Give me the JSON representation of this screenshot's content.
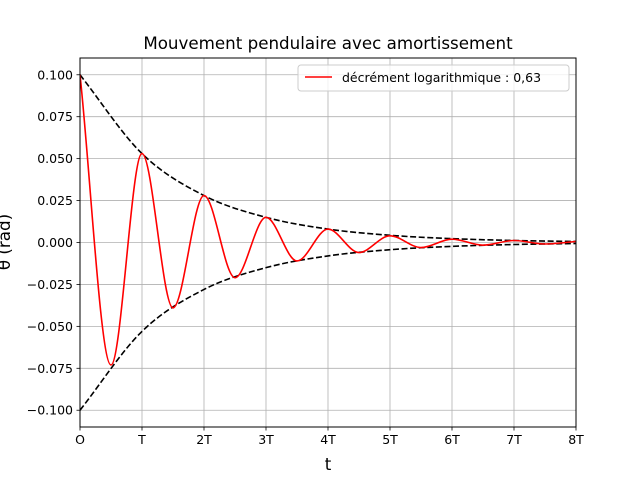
{
  "chart_data": {
    "type": "line",
    "title": "Mouvement pendulaire avec amortissement",
    "xlabel": "t",
    "ylabel": "θ (rad)",
    "xlim": [
      0,
      8
    ],
    "ylim": [
      -0.11,
      0.11
    ],
    "x_ticks": [
      {
        "value": 0,
        "label": "O"
      },
      {
        "value": 1,
        "label": "T"
      },
      {
        "value": 2,
        "label": "2T"
      },
      {
        "value": 3,
        "label": "3T"
      },
      {
        "value": 4,
        "label": "4T"
      },
      {
        "value": 5,
        "label": "5T"
      },
      {
        "value": 6,
        "label": "6T"
      },
      {
        "value": 7,
        "label": "7T"
      },
      {
        "value": 8,
        "label": "8T"
      }
    ],
    "y_ticks": [
      {
        "value": 0.1,
        "label": "0.100"
      },
      {
        "value": 0.075,
        "label": "0.075"
      },
      {
        "value": 0.05,
        "label": "0.050"
      },
      {
        "value": 0.025,
        "label": "0.025"
      },
      {
        "value": 0.0,
        "label": "0.000"
      },
      {
        "value": -0.025,
        "label": "−0.025"
      },
      {
        "value": -0.05,
        "label": "−0.050"
      },
      {
        "value": -0.075,
        "label": "−0.075"
      },
      {
        "value": -0.1,
        "label": "−0.100"
      }
    ],
    "grid": true,
    "legend_position": "top-right",
    "series": [
      {
        "name": "décrément logarithmique : 0,63",
        "color": "#ff0000",
        "style": "solid",
        "x": [
          0,
          0.5,
          1,
          1.5,
          2,
          2.5,
          3,
          3.5,
          4,
          4.5,
          5,
          5.5,
          6,
          6.5,
          7,
          7.5,
          8
        ],
        "y": [
          0.1,
          -0.073,
          0.053,
          -0.039,
          0.028,
          -0.021,
          0.015,
          -0.011,
          0.008,
          -0.006,
          0.004,
          -0.003,
          0.002,
          -0.0016,
          0.0012,
          -0.0009,
          0.0006
        ]
      },
      {
        "color": "#000000",
        "style": "dashed",
        "x": [
          0,
          1,
          2,
          3,
          4,
          5,
          6,
          7,
          8
        ],
        "y": [
          0.1,
          0.053,
          0.028,
          0.015,
          0.008,
          0.0043,
          0.0023,
          0.0012,
          0.0006
        ]
      },
      {
        "color": "#000000",
        "style": "dashed",
        "x": [
          0,
          1,
          2,
          3,
          4,
          5,
          6,
          7,
          8
        ],
        "y": [
          -0.1,
          -0.053,
          -0.028,
          -0.015,
          -0.008,
          -0.0043,
          -0.0023,
          -0.0012,
          -0.0006
        ]
      }
    ]
  }
}
